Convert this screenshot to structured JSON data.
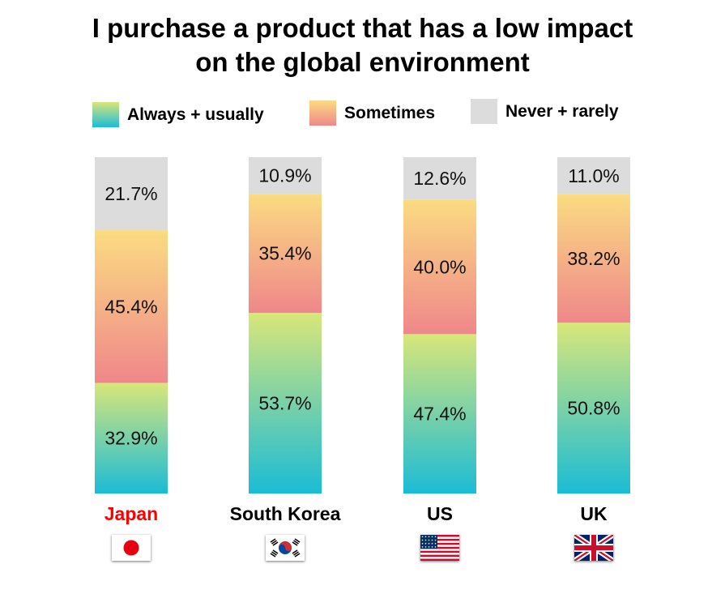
{
  "title_lines": [
    "I purchase a product that has a low impact",
    "on the global environment"
  ],
  "legend": [
    {
      "label": "Always + usually"
    },
    {
      "label": "Sometimes"
    },
    {
      "label": "Never + rarely"
    }
  ],
  "colors": {
    "always_top": "#d9e67a",
    "always_bottom": "#1bbcd6",
    "sometimes_top": "#fbdc82",
    "sometimes_bottom": "#ef878a",
    "never": "#dcdcdc",
    "japan_label": "#ff0000",
    "default_label": "#000000"
  },
  "chart_data": {
    "type": "bar",
    "stacked": true,
    "normalized_percent": true,
    "categories": [
      "Japan",
      "South Korea",
      "US",
      "UK"
    ],
    "category_label_colors": [
      "#ff0000",
      "#000000",
      "#000000",
      "#000000"
    ],
    "category_flags": [
      "japan-flag",
      "south-korea-flag",
      "us-flag",
      "uk-flag"
    ],
    "series": [
      {
        "name": "Always + usually",
        "values": [
          32.9,
          53.7,
          47.4,
          50.8
        ],
        "labels": [
          "32.9%",
          "53.7%",
          "47.4%",
          "50.8%"
        ]
      },
      {
        "name": "Sometimes",
        "values": [
          45.4,
          35.4,
          40.0,
          38.2
        ],
        "labels": [
          "45.4%",
          "35.4%",
          "40.0%",
          "38.2%"
        ]
      },
      {
        "name": "Never + rarely",
        "values": [
          21.7,
          10.9,
          12.6,
          11.0
        ],
        "labels": [
          "21.7%",
          "10.9%",
          "12.6%",
          "11.0%"
        ]
      }
    ],
    "ylim": [
      0,
      100
    ],
    "legend_position": "top",
    "grid": false
  }
}
